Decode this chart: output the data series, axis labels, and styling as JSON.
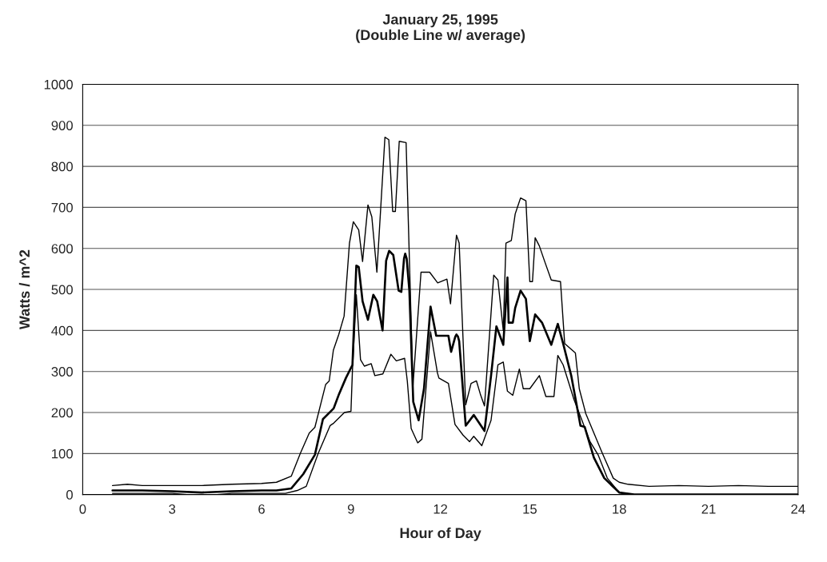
{
  "chart_data": {
    "type": "line",
    "title": "January 25, 1995\n(Double Line w/ average)",
    "xlabel": "Hour of Day",
    "ylabel": "Watts / m^2",
    "xlim": [
      0,
      24
    ],
    "xticks": [
      0,
      3,
      6,
      9,
      12,
      15,
      18,
      21,
      24
    ],
    "ylim": [
      0,
      1000
    ],
    "yticks": [
      0,
      100,
      200,
      300,
      400,
      500,
      600,
      700,
      800,
      900,
      1000
    ],
    "grid": "y",
    "line_style": "solid",
    "marker": "none",
    "series": [
      {
        "color": "#000000",
        "x": [
          1,
          1.5,
          2,
          3,
          4,
          5,
          6,
          6.5,
          7,
          7.3,
          7.6,
          7.79,
          8.15,
          8.27,
          8.41,
          8.59,
          8.77,
          8.95,
          9.08,
          9.26,
          9.39,
          9.57,
          9.7,
          9.87,
          10.14,
          10.27,
          10.4,
          10.49,
          10.62,
          10.85,
          11.08,
          11.35,
          11.64,
          11.91,
          12.22,
          12.34,
          12.54,
          12.63,
          12.85,
          13.03,
          13.21,
          13.34,
          13.48,
          13.79,
          13.93,
          14.11,
          14.2,
          14.38,
          14.51,
          14.69,
          14.87,
          15.0,
          15.09,
          15.18,
          15.32,
          15.5,
          15.72,
          16.03,
          16.17,
          16.53,
          16.66,
          16.88,
          17.42,
          17.8,
          18,
          18.3,
          19,
          20,
          21,
          22,
          23,
          24
        ],
        "values": [
          22,
          25,
          22,
          22,
          22,
          25,
          27,
          30,
          45,
          100,
          150,
          164,
          268,
          277,
          352,
          390,
          435,
          613,
          665,
          645,
          568,
          706,
          677,
          542,
          871,
          865,
          690,
          690,
          861,
          858,
          265,
          542,
          542,
          516,
          525,
          465,
          632,
          613,
          219,
          271,
          277,
          245,
          216,
          535,
          523,
          400,
          613,
          619,
          684,
          723,
          716,
          519,
          519,
          626,
          606,
          568,
          523,
          519,
          368,
          345,
          258,
          197,
          103,
          40,
          30,
          25,
          20,
          22,
          20,
          22,
          20,
          20
        ]
      },
      {
        "color": "#000000",
        "x": [
          1,
          2,
          3,
          4,
          5,
          6,
          6.5,
          7,
          7.4,
          7.79,
          8.06,
          8.42,
          8.6,
          8.83,
          9.05,
          9.18,
          9.26,
          9.39,
          9.57,
          9.75,
          9.88,
          10.06,
          10.18,
          10.28,
          10.42,
          10.6,
          10.69,
          10.78,
          10.82,
          10.87,
          10.96,
          11.09,
          11.27,
          11.45,
          11.67,
          11.86,
          12.27,
          12.36,
          12.5,
          12.54,
          12.59,
          12.63,
          12.85,
          13.12,
          13.48,
          13.7,
          13.88,
          14.11,
          14.25,
          14.29,
          14.43,
          14.51,
          14.69,
          14.87,
          15.0,
          15.18,
          15.41,
          15.72,
          15.94,
          16.12,
          16.39,
          16.7,
          16.84,
          17.15,
          17.5,
          18,
          18.5,
          20,
          22,
          24
        ],
        "values": [
          10,
          10,
          8,
          5,
          8,
          10,
          10,
          15,
          50,
          97,
          184,
          210,
          245,
          284,
          316,
          558,
          555,
          471,
          426,
          487,
          471,
          400,
          570,
          594,
          584,
          497,
          494,
          575,
          587,
          575,
          497,
          226,
          181,
          258,
          458,
          387,
          387,
          348,
          385,
          390,
          385,
          374,
          168,
          194,
          155,
          290,
          410,
          365,
          529,
          419,
          419,
          455,
          497,
          477,
          374,
          439,
          419,
          365,
          416,
          368,
          290,
          168,
          165,
          90,
          40,
          5,
          0,
          0,
          0,
          0
        ]
      },
      {
        "color": "#000000",
        "x": [
          1,
          2,
          3,
          3.5,
          4.5,
          5,
          6,
          6.8,
          7.2,
          7.5,
          7.9,
          8.3,
          8.42,
          8.78,
          9.0,
          9.05,
          9.18,
          9.32,
          9.45,
          9.68,
          9.8,
          10.07,
          10.34,
          10.52,
          10.8,
          10.89,
          11.02,
          11.24,
          11.38,
          11.67,
          11.9,
          11.95,
          12.27,
          12.49,
          12.76,
          12.98,
          13.12,
          13.39,
          13.7,
          13.93,
          14.11,
          14.25,
          14.43,
          14.65,
          14.78,
          15.0,
          15.32,
          15.54,
          15.81,
          15.94,
          16.12,
          16.48,
          16.75,
          17.02,
          17.29,
          17.6,
          18,
          18.5,
          20,
          22,
          24
        ],
        "values": [
          3,
          3,
          3,
          0,
          0,
          3,
          3,
          3,
          10,
          20,
          100,
          168,
          174,
          200,
          203,
          303,
          487,
          329,
          313,
          319,
          290,
          294,
          342,
          326,
          332,
          277,
          161,
          126,
          135,
          397,
          297,
          284,
          271,
          171,
          145,
          129,
          142,
          119,
          181,
          316,
          323,
          252,
          242,
          306,
          258,
          258,
          290,
          239,
          239,
          339,
          316,
          232,
          181,
          129,
          97,
          40,
          5,
          0,
          0,
          0,
          0
        ]
      }
    ]
  }
}
